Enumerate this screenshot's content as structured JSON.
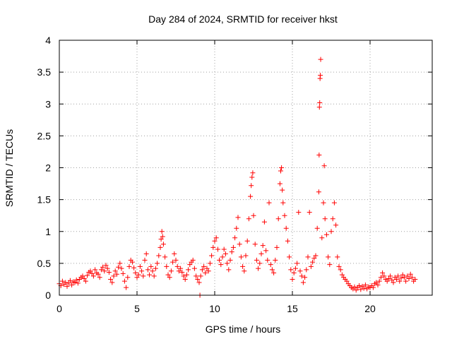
{
  "chart_data": {
    "type": "scatter",
    "title": "Day 284 of 2024, SRMTID for receiver hkst",
    "xlabel": "GPS time / hours",
    "ylabel": "SRMTID / TECUs",
    "xlim": [
      0,
      24
    ],
    "ylim": [
      0,
      4
    ],
    "xticks": [
      0,
      5,
      10,
      15,
      20
    ],
    "xtick_labels": [
      "0",
      "5",
      "10",
      "15",
      "20"
    ],
    "yticks": [
      0,
      0.5,
      1,
      1.5,
      2,
      2.5,
      3,
      3.5,
      4
    ],
    "ytick_labels": [
      "0",
      "0.5",
      "1",
      "1.5",
      "2",
      "2.5",
      "3",
      "3.5",
      "4"
    ],
    "grid": true,
    "marker": "+",
    "series_color": "#ff0000",
    "series": [
      {
        "name": "SRMTID",
        "points": [
          [
            0.0,
            0.18
          ],
          [
            0.1,
            0.15
          ],
          [
            0.2,
            0.22
          ],
          [
            0.3,
            0.17
          ],
          [
            0.4,
            0.2
          ],
          [
            0.5,
            0.14
          ],
          [
            0.6,
            0.19
          ],
          [
            0.7,
            0.23
          ],
          [
            0.8,
            0.16
          ],
          [
            0.9,
            0.21
          ],
          [
            1.0,
            0.2
          ],
          [
            1.1,
            0.24
          ],
          [
            1.2,
            0.19
          ],
          [
            1.3,
            0.25
          ],
          [
            1.4,
            0.28
          ],
          [
            1.5,
            0.3
          ],
          [
            1.6,
            0.26
          ],
          [
            1.7,
            0.22
          ],
          [
            1.8,
            0.31
          ],
          [
            1.9,
            0.36
          ],
          [
            2.0,
            0.38
          ],
          [
            2.1,
            0.34
          ],
          [
            2.2,
            0.3
          ],
          [
            2.3,
            0.4
          ],
          [
            2.4,
            0.35
          ],
          [
            2.5,
            0.33
          ],
          [
            2.6,
            0.28
          ],
          [
            2.7,
            0.4
          ],
          [
            2.8,
            0.44
          ],
          [
            2.9,
            0.38
          ],
          [
            3.0,
            0.47
          ],
          [
            3.1,
            0.42
          ],
          [
            3.2,
            0.36
          ],
          [
            3.3,
            0.25
          ],
          [
            3.4,
            0.2
          ],
          [
            3.5,
            0.3
          ],
          [
            3.6,
            0.38
          ],
          [
            3.7,
            0.33
          ],
          [
            3.8,
            0.44
          ],
          [
            3.9,
            0.5
          ],
          [
            4.0,
            0.42
          ],
          [
            4.1,
            0.34
          ],
          [
            4.2,
            0.22
          ],
          [
            4.3,
            0.12
          ],
          [
            4.4,
            0.28
          ],
          [
            4.5,
            0.45
          ],
          [
            4.6,
            0.55
          ],
          [
            4.7,
            0.52
          ],
          [
            4.8,
            0.43
          ],
          [
            4.9,
            0.35
          ],
          [
            5.0,
            0.28
          ],
          [
            5.1,
            0.32
          ],
          [
            5.2,
            0.45
          ],
          [
            5.3,
            0.38
          ],
          [
            5.4,
            0.3
          ],
          [
            5.5,
            0.55
          ],
          [
            5.6,
            0.65
          ],
          [
            5.7,
            0.4
          ],
          [
            5.8,
            0.32
          ],
          [
            5.9,
            0.45
          ],
          [
            6.0,
            0.38
          ],
          [
            6.1,
            0.3
          ],
          [
            6.2,
            0.42
          ],
          [
            6.3,
            0.5
          ],
          [
            6.4,
            0.62
          ],
          [
            6.5,
            0.75
          ],
          [
            6.55,
            0.88
          ],
          [
            6.6,
            1.0
          ],
          [
            6.65,
            0.92
          ],
          [
            6.7,
            0.8
          ],
          [
            6.8,
            0.6
          ],
          [
            6.9,
            0.45
          ],
          [
            7.0,
            0.32
          ],
          [
            7.1,
            0.28
          ],
          [
            7.2,
            0.38
          ],
          [
            7.3,
            0.52
          ],
          [
            7.4,
            0.65
          ],
          [
            7.5,
            0.55
          ],
          [
            7.6,
            0.45
          ],
          [
            7.7,
            0.38
          ],
          [
            7.8,
            0.42
          ],
          [
            7.9,
            0.36
          ],
          [
            8.0,
            0.3
          ],
          [
            8.1,
            0.25
          ],
          [
            8.2,
            0.32
          ],
          [
            8.3,
            0.4
          ],
          [
            8.4,
            0.48
          ],
          [
            8.5,
            0.52
          ],
          [
            8.6,
            0.55
          ],
          [
            8.7,
            0.42
          ],
          [
            8.8,
            0.3
          ],
          [
            8.9,
            0.25
          ],
          [
            9.0,
            0.2
          ],
          [
            9.05,
            0.0
          ],
          [
            9.1,
            0.3
          ],
          [
            9.2,
            0.4
          ],
          [
            9.3,
            0.45
          ],
          [
            9.4,
            0.35
          ],
          [
            9.5,
            0.42
          ],
          [
            9.6,
            0.38
          ],
          [
            9.7,
            0.5
          ],
          [
            9.8,
            0.62
          ],
          [
            9.9,
            0.75
          ],
          [
            10.0,
            0.85
          ],
          [
            10.1,
            0.9
          ],
          [
            10.2,
            0.72
          ],
          [
            10.3,
            0.55
          ],
          [
            10.4,
            0.48
          ],
          [
            10.5,
            0.6
          ],
          [
            10.6,
            0.72
          ],
          [
            10.7,
            0.65
          ],
          [
            10.8,
            0.5
          ],
          [
            10.9,
            0.4
          ],
          [
            11.0,
            0.55
          ],
          [
            11.1,
            0.68
          ],
          [
            11.2,
            0.75
          ],
          [
            11.3,
            0.9
          ],
          [
            11.4,
            1.05
          ],
          [
            11.5,
            1.22
          ],
          [
            11.6,
            0.8
          ],
          [
            11.7,
            0.6
          ],
          [
            11.8,
            0.45
          ],
          [
            11.9,
            0.38
          ],
          [
            12.0,
            0.62
          ],
          [
            12.1,
            0.85
          ],
          [
            12.2,
            1.2
          ],
          [
            12.3,
            1.55
          ],
          [
            12.35,
            1.72
          ],
          [
            12.4,
            1.85
          ],
          [
            12.45,
            1.92
          ],
          [
            12.5,
            1.25
          ],
          [
            12.6,
            0.8
          ],
          [
            12.7,
            0.55
          ],
          [
            12.8,
            0.42
          ],
          [
            12.9,
            0.5
          ],
          [
            13.0,
            0.65
          ],
          [
            13.1,
            0.78
          ],
          [
            13.2,
            1.15
          ],
          [
            13.3,
            0.7
          ],
          [
            13.4,
            0.55
          ],
          [
            13.5,
            1.45
          ],
          [
            13.6,
            0.48
          ],
          [
            13.7,
            0.4
          ],
          [
            13.8,
            0.35
          ],
          [
            13.9,
            0.55
          ],
          [
            14.0,
            0.75
          ],
          [
            14.1,
            1.2
          ],
          [
            14.2,
            1.75
          ],
          [
            14.25,
            1.95
          ],
          [
            14.3,
            2.0
          ],
          [
            14.35,
            1.65
          ],
          [
            14.4,
            1.45
          ],
          [
            14.5,
            1.25
          ],
          [
            14.6,
            1.05
          ],
          [
            14.7,
            0.85
          ],
          [
            14.8,
            0.6
          ],
          [
            14.9,
            0.4
          ],
          [
            15.0,
            0.25
          ],
          [
            15.1,
            0.35
          ],
          [
            15.2,
            0.42
          ],
          [
            15.3,
            0.5
          ],
          [
            15.4,
            1.3
          ],
          [
            15.5,
            0.38
          ],
          [
            15.6,
            0.3
          ],
          [
            15.7,
            0.2
          ],
          [
            15.8,
            0.28
          ],
          [
            15.9,
            0.4
          ],
          [
            16.0,
            0.6
          ],
          [
            16.1,
            1.3
          ],
          [
            16.2,
            0.45
          ],
          [
            16.3,
            0.52
          ],
          [
            16.4,
            0.58
          ],
          [
            16.5,
            0.62
          ],
          [
            16.6,
            1.05
          ],
          [
            16.7,
            1.62
          ],
          [
            16.72,
            2.2
          ],
          [
            16.74,
            2.95
          ],
          [
            16.76,
            3.02
          ],
          [
            16.78,
            3.4
          ],
          [
            16.8,
            3.45
          ],
          [
            16.82,
            3.7
          ],
          [
            16.9,
            0.9
          ],
          [
            17.0,
            1.45
          ],
          [
            17.05,
            2.03
          ],
          [
            17.1,
            1.2
          ],
          [
            17.2,
            0.95
          ],
          [
            17.3,
            0.6
          ],
          [
            17.4,
            0.48
          ],
          [
            17.5,
            1.0
          ],
          [
            17.6,
            1.2
          ],
          [
            17.7,
            1.45
          ],
          [
            17.8,
            1.1
          ],
          [
            17.9,
            0.6
          ],
          [
            18.0,
            0.45
          ],
          [
            18.1,
            0.4
          ],
          [
            18.2,
            0.32
          ],
          [
            18.3,
            0.28
          ],
          [
            18.4,
            0.25
          ],
          [
            18.5,
            0.22
          ],
          [
            18.6,
            0.18
          ],
          [
            18.7,
            0.15
          ],
          [
            18.8,
            0.12
          ],
          [
            18.9,
            0.1
          ],
          [
            19.0,
            0.13
          ],
          [
            19.1,
            0.08
          ],
          [
            19.2,
            0.12
          ],
          [
            19.3,
            0.15
          ],
          [
            19.4,
            0.09
          ],
          [
            19.5,
            0.14
          ],
          [
            19.6,
            0.11
          ],
          [
            19.7,
            0.16
          ],
          [
            19.8,
            0.1
          ],
          [
            19.9,
            0.13
          ],
          [
            20.0,
            0.12
          ],
          [
            20.1,
            0.15
          ],
          [
            20.2,
            0.12
          ],
          [
            20.3,
            0.18
          ],
          [
            20.4,
            0.2
          ],
          [
            20.5,
            0.16
          ],
          [
            20.6,
            0.22
          ],
          [
            20.7,
            0.28
          ],
          [
            20.8,
            0.35
          ],
          [
            20.9,
            0.3
          ],
          [
            21.0,
            0.25
          ],
          [
            21.1,
            0.22
          ],
          [
            21.2,
            0.26
          ],
          [
            21.3,
            0.3
          ],
          [
            21.4,
            0.24
          ],
          [
            21.5,
            0.2
          ],
          [
            21.6,
            0.28
          ],
          [
            21.7,
            0.25
          ],
          [
            21.8,
            0.3
          ],
          [
            21.9,
            0.22
          ],
          [
            22.0,
            0.27
          ],
          [
            22.1,
            0.32
          ],
          [
            22.2,
            0.28
          ],
          [
            22.3,
            0.22
          ],
          [
            22.4,
            0.3
          ],
          [
            22.5,
            0.26
          ],
          [
            22.6,
            0.33
          ],
          [
            22.7,
            0.28
          ],
          [
            22.8,
            0.22
          ],
          [
            22.9,
            0.25
          ]
        ]
      }
    ]
  }
}
